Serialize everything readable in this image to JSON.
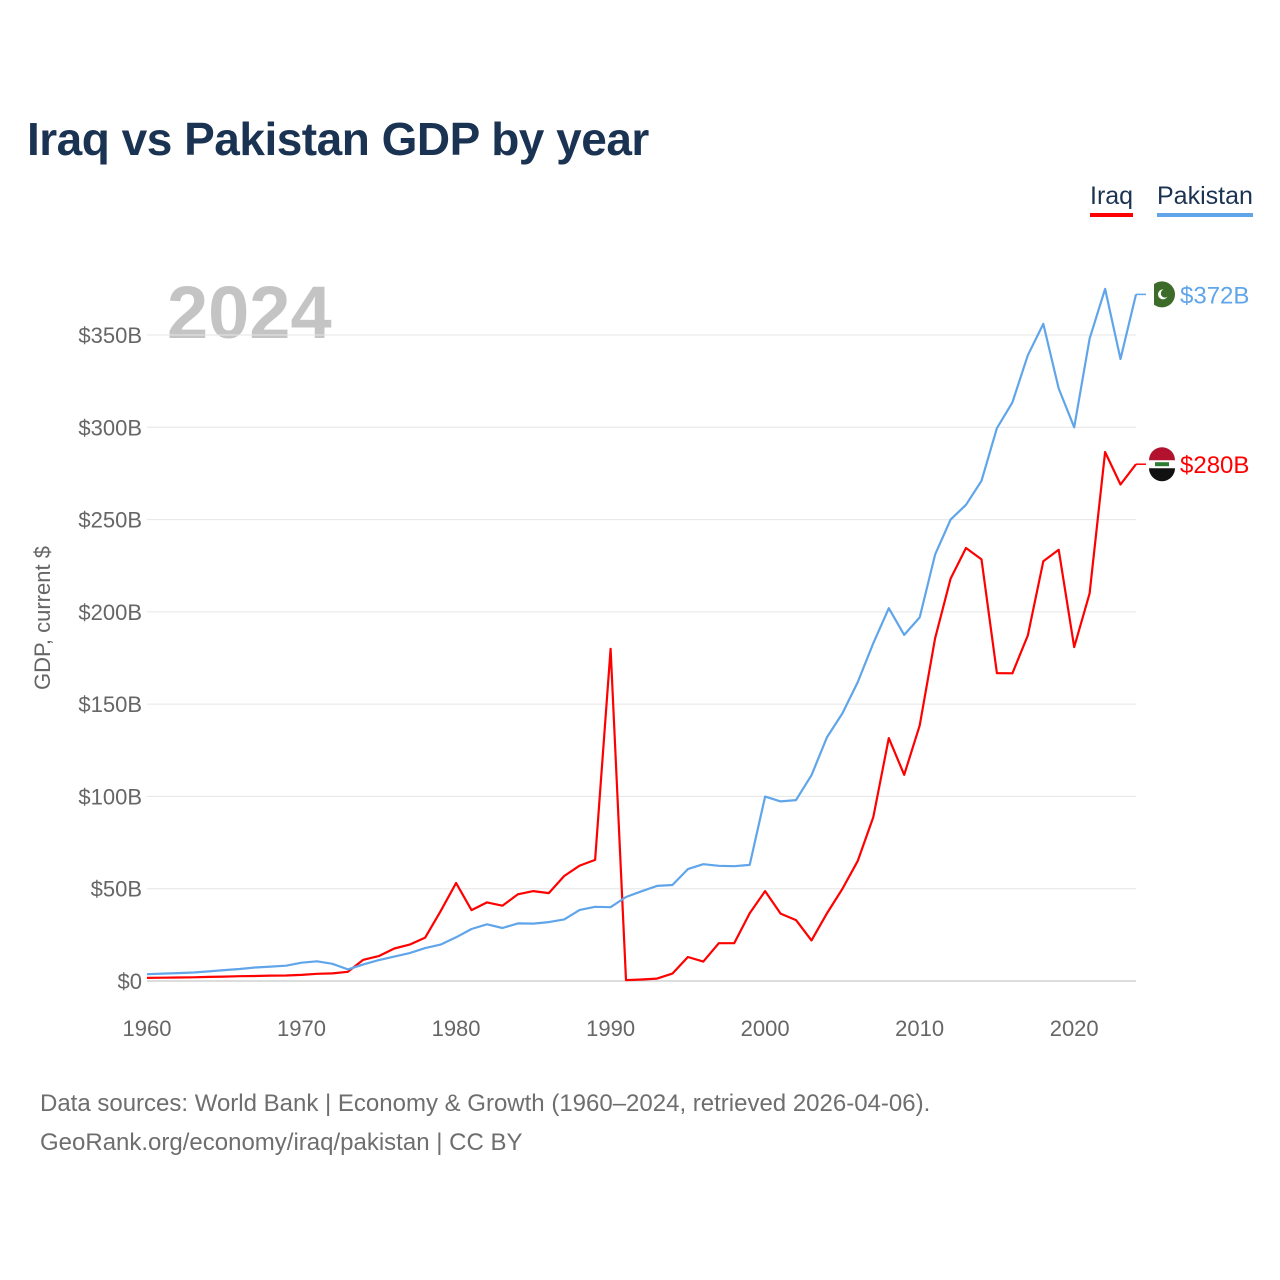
{
  "colors": {
    "iraq": "#ff0000",
    "pakistan": "#60a5ea",
    "title": "#1b3353"
  },
  "chart_data": {
    "type": "line",
    "title": "Iraq vs Pakistan GDP by year",
    "ylabel": "GDP, current $",
    "xlabel": "",
    "year_label": "2024",
    "xlim": [
      1960,
      2024
    ],
    "ylim": [
      0,
      350
    ],
    "x_ticks": [
      1960,
      1970,
      1980,
      1990,
      2000,
      2010,
      2020
    ],
    "x_tick_labels": [
      "1960",
      "1970",
      "1980",
      "1990",
      "2000",
      "2010",
      "2020"
    ],
    "y_ticks": [
      0,
      50,
      100,
      150,
      200,
      250,
      300,
      350
    ],
    "y_tick_labels": [
      "$0",
      "$50B",
      "$100B",
      "$150B",
      "$200B",
      "$250B",
      "$300B",
      "$350B"
    ],
    "grid": true,
    "legend": {
      "placement": "top-right",
      "entries": [
        "Iraq",
        "Pakistan"
      ]
    },
    "x_start": 1960,
    "series": [
      {
        "name": "Iraq",
        "color": "#ff0000",
        "end_label": "$280B",
        "flag": "iraq-flag",
        "values": [
          1.7,
          1.8,
          1.9,
          2.0,
          2.2,
          2.4,
          2.6,
          2.7,
          2.9,
          3.0,
          3.3,
          3.9,
          4.1,
          5.0,
          11.5,
          13.5,
          17.6,
          19.7,
          23.5,
          37.8,
          53.1,
          38.4,
          42.6,
          40.8,
          47.0,
          48.7,
          47.6,
          56.9,
          62.5,
          65.6,
          180.0,
          0.5,
          0.8,
          1.3,
          4.0,
          13.0,
          10.5,
          20.5,
          20.5,
          36.7,
          48.7,
          36.5,
          33.0,
          22.0,
          36.6,
          49.9,
          65.1,
          88.8,
          131.6,
          111.7,
          138.5,
          185.7,
          218.0,
          234.6,
          228.4,
          166.8,
          166.7,
          187.2,
          227.4,
          233.6,
          180.9,
          210.0,
          286.6,
          269.0,
          280.0
        ]
      },
      {
        "name": "Pakistan",
        "color": "#60a5ea",
        "end_label": "$372B",
        "flag": "pakistan-flag",
        "values": [
          3.7,
          4.0,
          4.3,
          4.6,
          5.2,
          5.9,
          6.5,
          7.3,
          7.8,
          8.3,
          9.9,
          10.7,
          9.3,
          6.3,
          9.0,
          11.3,
          13.2,
          15.1,
          17.8,
          19.7,
          23.7,
          28.2,
          30.7,
          28.7,
          31.2,
          31.1,
          31.9,
          33.4,
          38.5,
          40.2,
          40.0,
          45.5,
          48.6,
          51.5,
          52.0,
          60.6,
          63.3,
          62.4,
          62.2,
          62.9,
          99.9,
          97.3,
          98.0,
          111.5,
          132.0,
          145.0,
          162.0,
          183.0,
          202.0,
          187.5,
          197.0,
          231.0,
          250.0,
          258.0,
          271.0,
          299.5,
          313.5,
          339.0,
          356.0,
          321.0,
          300.0,
          348.0,
          375.0,
          337.0,
          372.0
        ]
      }
    ]
  },
  "sources": {
    "line1": "Data sources: World Bank | Economy & Growth (1960–2024, retrieved 2026-04-06).",
    "line2": "GeoRank.org/economy/iraq/pakistan | CC BY"
  }
}
